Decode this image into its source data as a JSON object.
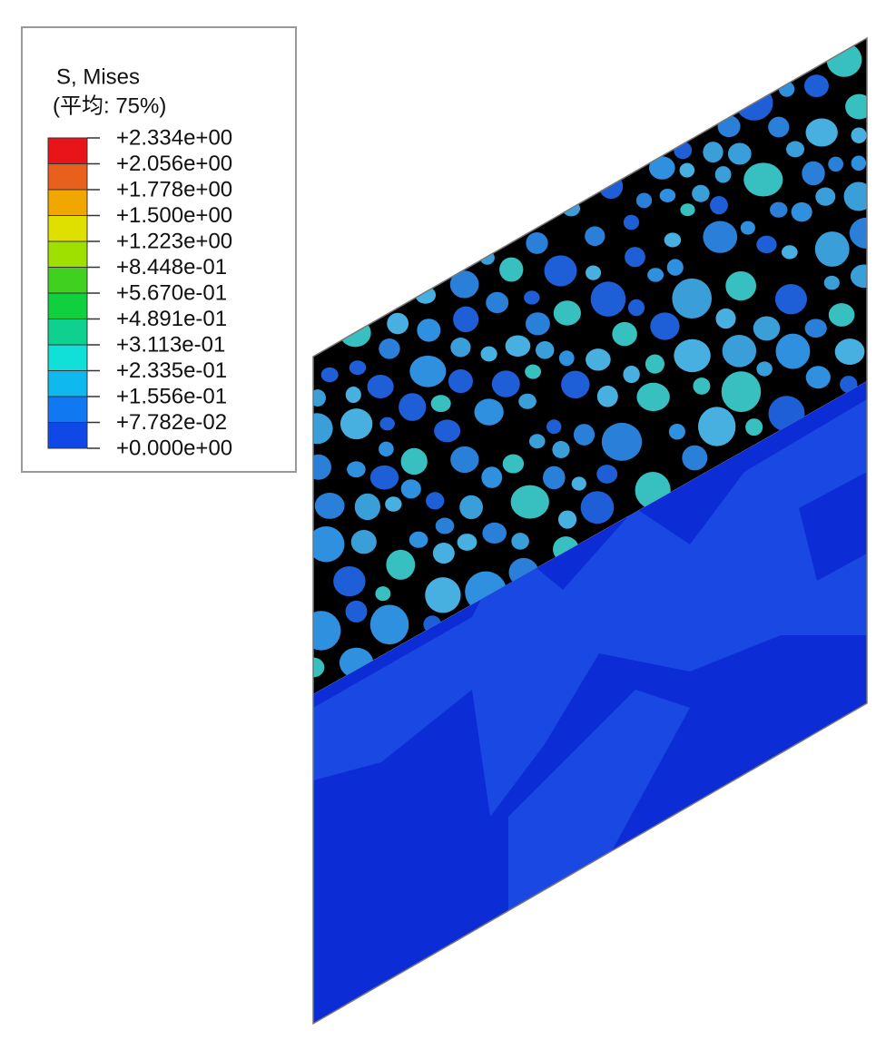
{
  "legend": {
    "title": "S, Mises",
    "subtitle": "(平均: 75%)",
    "labels": [
      "+2.334e+00",
      "+2.056e+00",
      "+1.778e+00",
      "+1.500e+00",
      "+1.223e+00",
      "+8.448e-01",
      "+5.670e-01",
      "+4.891e-01",
      "+3.113e-01",
      "+2.335e-01",
      "+1.556e-01",
      "+7.782e-02",
      "+0.000e+00"
    ]
  }
}
